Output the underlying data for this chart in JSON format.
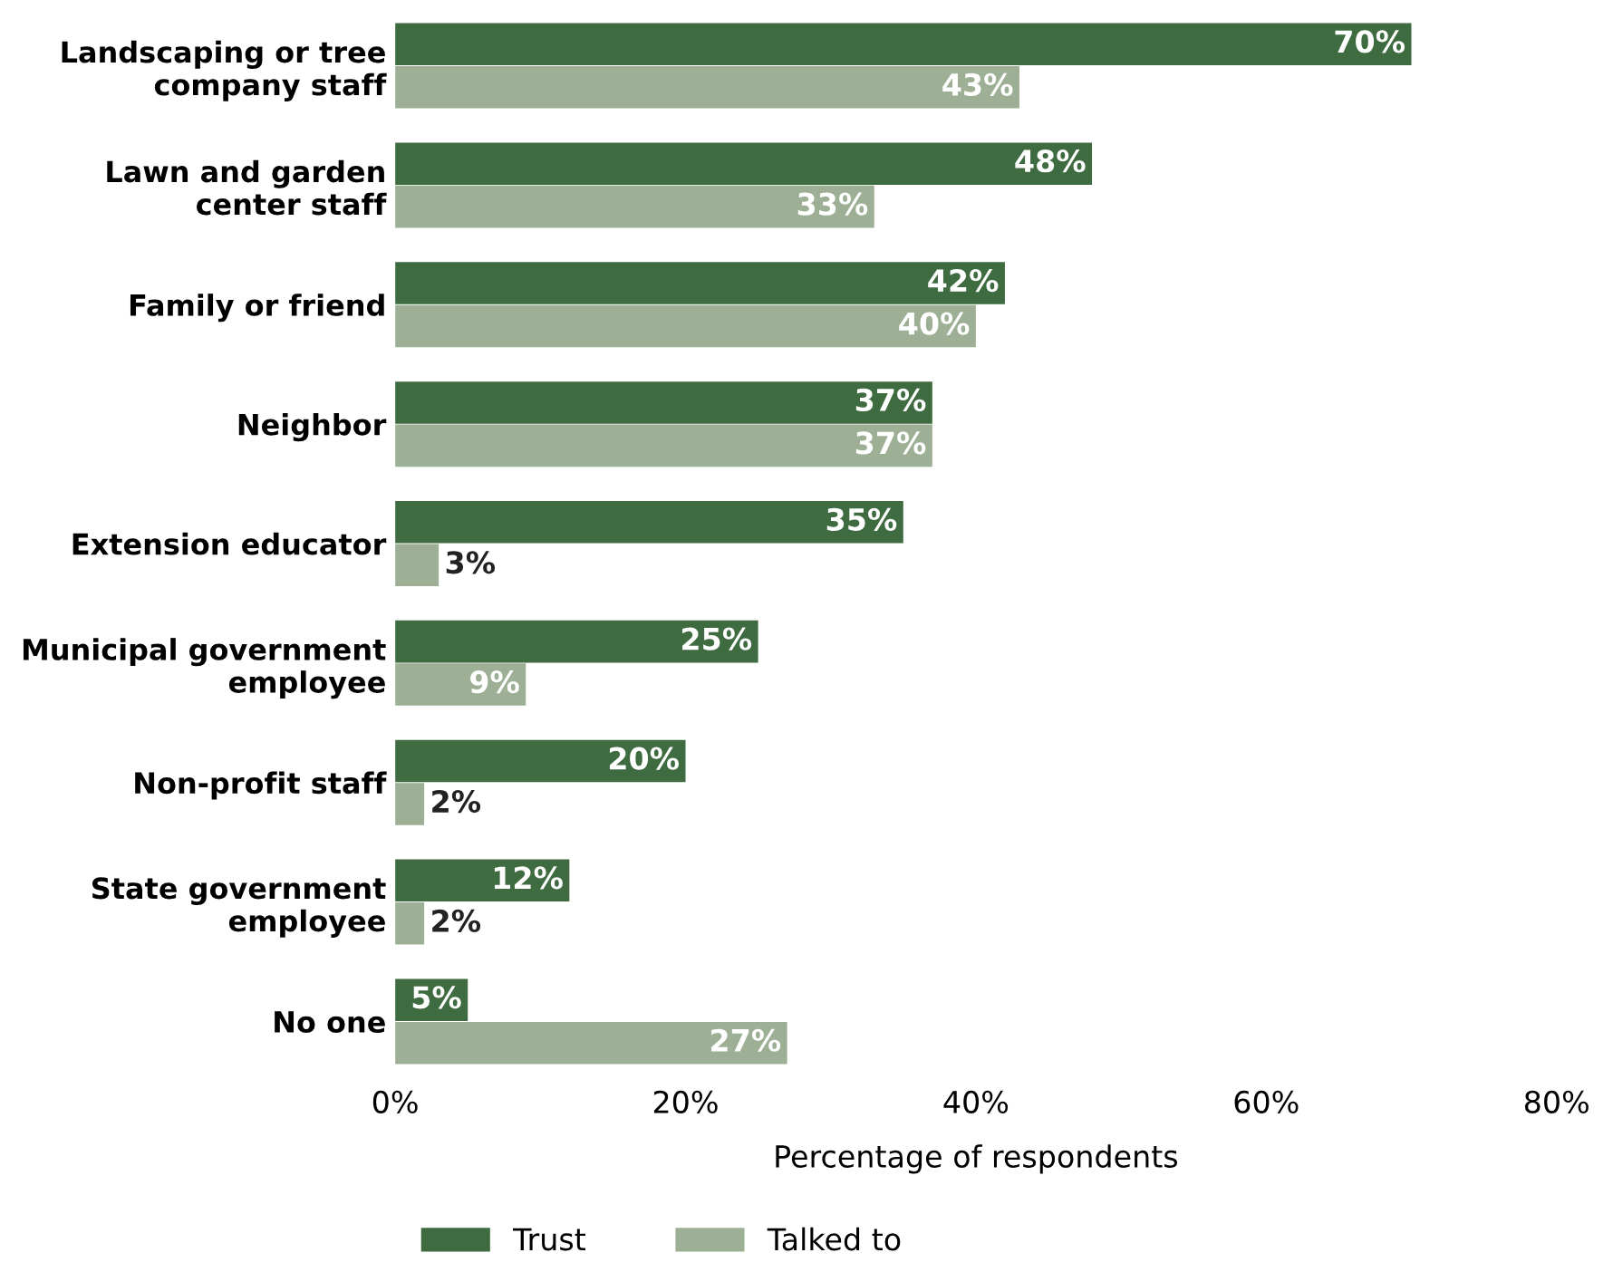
{
  "chart_data": {
    "type": "bar",
    "orientation": "horizontal",
    "xlabel": "Percentage of respondents",
    "categories": [
      "Landscaping or tree\ncompany staff",
      "Lawn and garden\ncenter staff",
      "Family or friend",
      "Neighbor",
      "Extension educator",
      "Municipal government\nemployee",
      "Non-profit staff",
      "State government\nemployee",
      "No one"
    ],
    "series": [
      {
        "name": "Trust",
        "color": "#3e6b40",
        "values": [
          70,
          48,
          42,
          37,
          35,
          25,
          20,
          12,
          5
        ],
        "value_labels": [
          "70%",
          "48%",
          "42%",
          "37%",
          "35%",
          "25%",
          "20%",
          "12%",
          "5%"
        ]
      },
      {
        "name": "Talked to",
        "color": "#9db095",
        "values": [
          43,
          33,
          40,
          37,
          3,
          9,
          2,
          2,
          27
        ],
        "value_labels": [
          "43%",
          "33%",
          "40%",
          "37%",
          "3%",
          "9%",
          "2%",
          "2%",
          "27%"
        ]
      }
    ],
    "xlim": [
      0,
      80
    ],
    "xticks": [
      {
        "value": 0,
        "label": "0%"
      },
      {
        "value": 20,
        "label": "20%"
      },
      {
        "value": 40,
        "label": "40%"
      },
      {
        "value": 60,
        "label": "60%"
      },
      {
        "value": 80,
        "label": "80%"
      }
    ],
    "grid": false,
    "legend": "bottom"
  }
}
